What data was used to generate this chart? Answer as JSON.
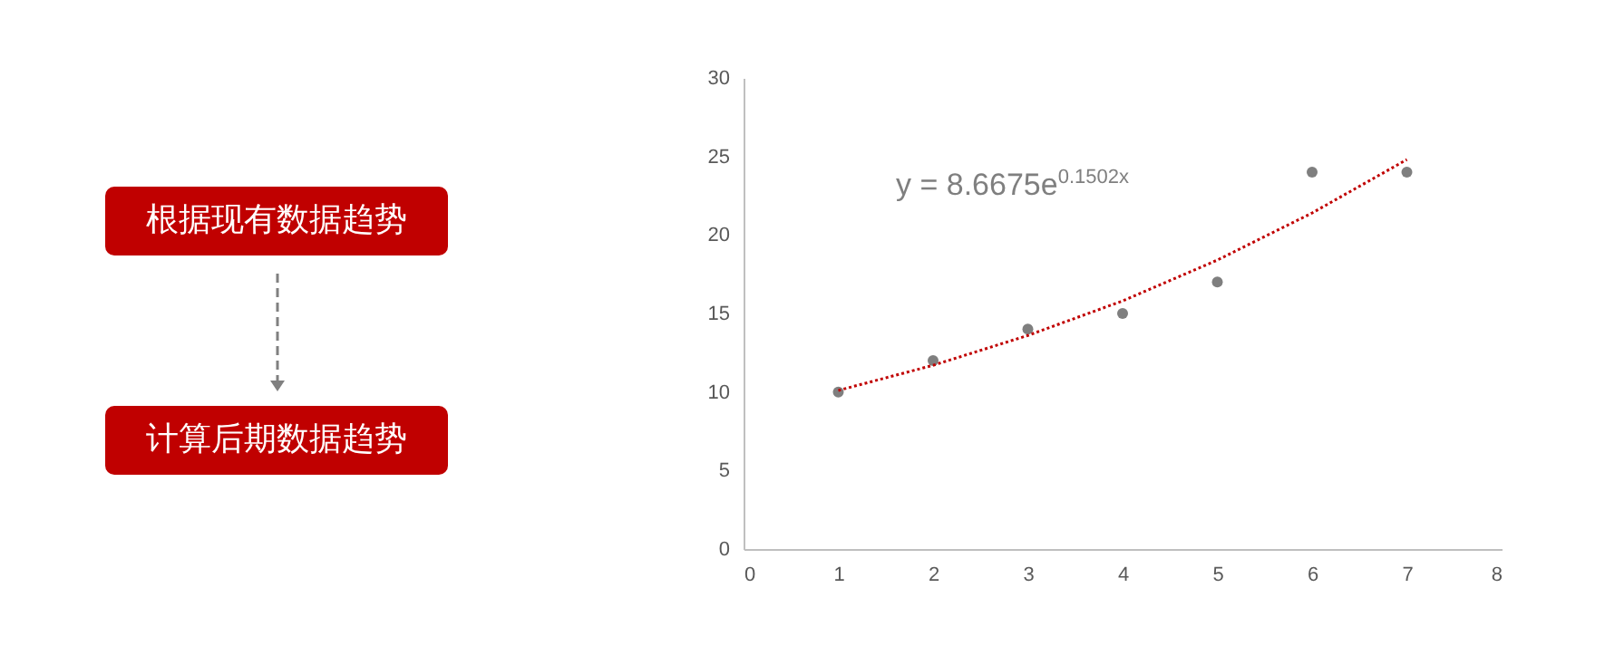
{
  "chart_data": [
    {
      "type": "other",
      "annotations": [
        "根据现有数据趋势",
        "计算后期数据趋势"
      ]
    },
    {
      "type": "scatter",
      "series": [
        {
          "type": "scatter",
          "marker": "circle",
          "color": "#7f7f7f",
          "x": [
            1,
            2,
            3,
            4,
            5,
            6,
            7
          ],
          "values": [
            10,
            12,
            14,
            15,
            17,
            24,
            24
          ]
        },
        {
          "type": "line",
          "color": "#c00000",
          "line_style": "dotted",
          "x": [
            1,
            2,
            3,
            4,
            5,
            6,
            7
          ],
          "values": [
            10.1,
            11.7,
            13.6,
            15.8,
            18.4,
            21.4,
            24.8
          ]
        }
      ],
      "xlim": [
        0,
        8
      ],
      "xticks": [
        0,
        1,
        2,
        3,
        4,
        5,
        6,
        7,
        8
      ],
      "ylim": [
        0,
        30
      ],
      "yticks": [
        0,
        5,
        10,
        15,
        20,
        25,
        30
      ],
      "annotations": [
        "y = 8.6675e$^{0.1502x}$"
      ]
    }
  ]
}
